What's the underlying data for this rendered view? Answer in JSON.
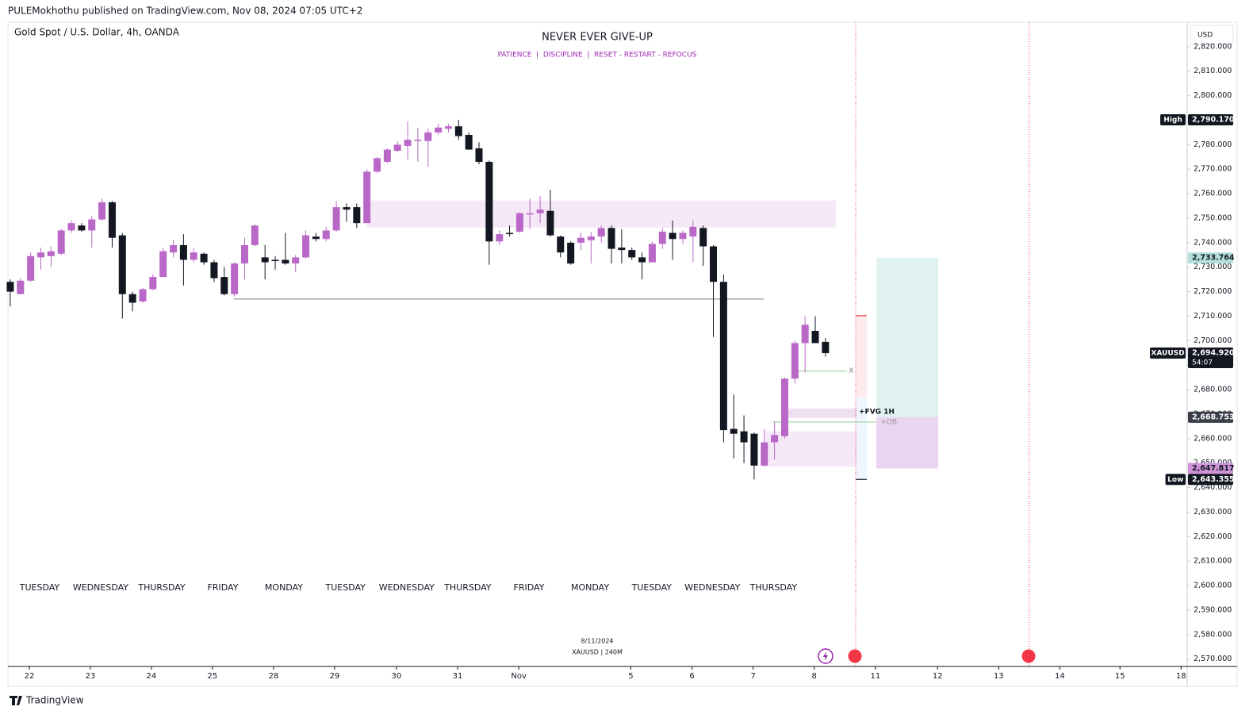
{
  "header": "PULEMokhothu published on TradingView.com, Nov 08, 2024 07:05 UTC+2",
  "footer": "TradingView",
  "chart_data": {
    "type": "candlestick",
    "symbol": "Gold Spot / U.S. Dollar, 4h, OANDA",
    "title": "NEVER EVER GIVE-UP",
    "subtitle": "PATIENCE  |  DISCIPLINE  |  RESET - RESTART - REFOCUS",
    "currency": "USD",
    "watermark": [
      "8/11/2024",
      "XAUUSD | 240M"
    ],
    "up_color": "#ba68c8",
    "down_color": "#131722",
    "open": [
      2724,
      2719,
      2724.5,
      2734,
      2734.5,
      2735.5,
      2745,
      2747,
      2745,
      2749.5,
      2756.5,
      2743,
      2719,
      2716,
      2721,
      2726,
      2736,
      2739,
      2733,
      2735.5,
      2732,
      2726,
      2719,
      2731.5,
      2739,
      2734,
      2733,
      2733,
      2731.5,
      2734,
      2742.5,
      2741.5,
      2745,
      2754.5,
      2754.5,
      2748,
      2769,
      2773,
      2777.5,
      2779.5,
      2781.5,
      2781.5,
      2785,
      2786.5,
      2787.5,
      2784,
      2778.5,
      2773,
      2740.5,
      2744,
      2744.5,
      2751.5,
      2752,
      2753,
      2742.5,
      2740,
      2740,
      2741,
      2742.5,
      2746,
      2738,
      2737,
      2734,
      2732,
      2739.5,
      2744,
      2741.5,
      2742.5,
      2746,
      2738.5,
      2724,
      2664,
      2663,
      2662,
      2649,
      2658.5,
      2661,
      2684.5,
      2699,
      2704,
      2699.5
    ],
    "high": [
      2725,
      2725.5,
      2736,
      2738,
      2738.5,
      2745.5,
      2749,
      2748,
      2751,
      2758,
      2757,
      2744,
      2720,
      2721.5,
      2727,
      2738,
      2741,
      2743.5,
      2738,
      2736,
      2733,
      2730,
      2732,
      2742,
      2747.5,
      2739,
      2734.5,
      2744,
      2735,
      2745,
      2744,
      2746.5,
      2757,
      2756,
      2756,
      2770,
      2775,
      2778.5,
      2781.5,
      2789.5,
      2787,
      2786.5,
      2788.5,
      2788.5,
      2790.17,
      2785,
      2781,
      2773.5,
      2745,
      2747,
      2752.5,
      2758,
      2759,
      2761.5,
      2743,
      2740.5,
      2744,
      2744.5,
      2747,
      2747,
      2745.5,
      2738,
      2736,
      2740.5,
      2746,
      2749,
      2745,
      2749,
      2747,
      2739,
      2727,
      2678,
      2669.5,
      2662.5,
      2664,
      2667,
      2685,
      2700,
      2710,
      2710,
      2701
    ],
    "low": [
      2714,
      2719,
      2724,
      2729,
      2730,
      2735,
      2744,
      2744.5,
      2738,
      2749,
      2738,
      2709,
      2712,
      2715.5,
      2720.5,
      2726,
      2734,
      2722.5,
      2732,
      2731,
      2724,
      2718.5,
      2718,
      2725,
      2738.5,
      2725,
      2729,
      2731,
      2728,
      2733.5,
      2740.5,
      2740.5,
      2744.5,
      2748.5,
      2746,
      2748,
      2768.5,
      2772.5,
      2777,
      2774,
      2773,
      2771,
      2784,
      2785,
      2782,
      2778,
      2772,
      2731,
      2739,
      2742.5,
      2744,
      2745.5,
      2748,
      2742.5,
      2734,
      2731,
      2737,
      2731.5,
      2740,
      2731.5,
      2731.5,
      2733,
      2725,
      2732,
      2737.5,
      2733,
      2739.5,
      2732,
      2730.5,
      2701.5,
      2658.5,
      2652,
      2650,
      2643.355,
      2648.5,
      2651.5,
      2660,
      2682.5,
      2687,
      2699,
      2693.5
    ],
    "close": [
      2720,
      2724.5,
      2734.5,
      2736,
      2736.5,
      2745,
      2748,
      2745,
      2749.5,
      2756.5,
      2742,
      2719,
      2715.5,
      2721,
      2726,
      2736.5,
      2739,
      2733,
      2736,
      2732,
      2725.5,
      2719,
      2731.5,
      2739,
      2747,
      2732,
      2732.5,
      2731.5,
      2734,
      2743,
      2741.5,
      2745,
      2754.5,
      2753.5,
      2748,
      2769,
      2774.5,
      2778,
      2780,
      2782,
      2782,
      2785,
      2787,
      2787.5,
      2783.5,
      2778,
      2773,
      2740.5,
      2743.5,
      2743.5,
      2752,
      2752,
      2753.5,
      2743,
      2736,
      2731.5,
      2742,
      2742.5,
      2746,
      2737.5,
      2737,
      2734,
      2732,
      2739.5,
      2744.5,
      2741.5,
      2744,
      2746.5,
      2738.5,
      2724,
      2663.5,
      2662,
      2658.5,
      2649,
      2658.5,
      2661.5,
      2684.5,
      2699,
      2706.5,
      2699,
      2694.92
    ],
    "xlim": [
      -0.23,
      115.5
    ],
    "ylim": [
      2567,
      2830
    ],
    "xticks": [
      {
        "value": 1.87,
        "label": "22"
      },
      {
        "value": 7.86,
        "label": "23"
      },
      {
        "value": 13.85,
        "label": "24"
      },
      {
        "value": 19.84,
        "label": "25"
      },
      {
        "value": 25.84,
        "label": "28"
      },
      {
        "value": 31.83,
        "label": "29"
      },
      {
        "value": 37.9,
        "label": "30"
      },
      {
        "value": 43.9,
        "label": "31"
      },
      {
        "value": 49.9,
        "label": "Nov"
      },
      {
        "value": 60.9,
        "label": "5"
      },
      {
        "value": 66.9,
        "label": "6"
      },
      {
        "value": 72.9,
        "label": "7"
      },
      {
        "value": 78.9,
        "label": "8"
      },
      {
        "value": 84.9,
        "label": "11"
      },
      {
        "value": 91.0,
        "label": "12"
      },
      {
        "value": 97.0,
        "label": "13"
      },
      {
        "value": 103.0,
        "label": "14"
      },
      {
        "value": 108.9,
        "label": "15"
      },
      {
        "value": 114.9,
        "label": "18"
      }
    ],
    "yticks": [
      {
        "value": 2570,
        "label": "2,570.000"
      },
      {
        "value": 2580,
        "label": "2,580.000"
      },
      {
        "value": 2590,
        "label": "2,590.000"
      },
      {
        "value": 2600,
        "label": "2,600.000"
      },
      {
        "value": 2610,
        "label": "2,610.000"
      },
      {
        "value": 2620,
        "label": "2,620.000"
      },
      {
        "value": 2630,
        "label": "2,630.000"
      },
      {
        "value": 2640,
        "label": "2,640.000"
      },
      {
        "value": 2650,
        "label": "2,650.000"
      },
      {
        "value": 2660,
        "label": "2,660.000"
      },
      {
        "value": 2670,
        "label": "2,670.000"
      },
      {
        "value": 2680,
        "label": "2,680.000"
      },
      {
        "value": 2690,
        "label": "2,690.000"
      },
      {
        "value": 2700,
        "label": "2,700.000"
      },
      {
        "value": 2710,
        "label": "2,710.000"
      },
      {
        "value": 2720,
        "label": "2,720.000"
      },
      {
        "value": 2730,
        "label": "2,730.000"
      },
      {
        "value": 2740,
        "label": "2,740.000"
      },
      {
        "value": 2750,
        "label": "2,750.000"
      },
      {
        "value": 2760,
        "label": "2,760.000"
      },
      {
        "value": 2770,
        "label": "2,770.000"
      },
      {
        "value": 2780,
        "label": "2,780.000"
      },
      {
        "value": 2790,
        "label": "2,790.000"
      },
      {
        "value": 2800,
        "label": "2,800.000"
      },
      {
        "value": 2810,
        "label": "2,810.000"
      },
      {
        "value": 2820,
        "label": "2,820.000"
      }
    ],
    "day_labels": [
      {
        "label": "TUESDAY",
        "x": 2.88
      },
      {
        "label": "WEDNESDAY",
        "x": 8.87
      },
      {
        "label": "THURSDAY",
        "x": 14.87
      },
      {
        "label": "FRIDAY",
        "x": 20.86
      },
      {
        "label": "MONDAY",
        "x": 26.85
      },
      {
        "label": "TUESDAY",
        "x": 32.9
      },
      {
        "label": "WEDNESDAY",
        "x": 38.9
      },
      {
        "label": "THURSDAY",
        "x": 44.9
      },
      {
        "label": "FRIDAY",
        "x": 50.9
      },
      {
        "label": "MONDAY",
        "x": 56.9
      },
      {
        "label": "TUESDAY",
        "x": 62.95
      },
      {
        "label": "WEDNESDAY",
        "x": 68.9
      },
      {
        "label": "THURSDAY",
        "x": 74.9
      }
    ],
    "zones": [
      {
        "x": [
          34.95,
          81.02
        ],
        "y": [
          2746.2,
          2757.2
        ],
        "color": "rgba(186,104,200,0.15)"
      },
      {
        "x": [
          74.1,
          83.05
        ],
        "y": [
          2648.7,
          2663
        ],
        "color": "rgba(186,104,200,0.15)"
      },
      {
        "x": [
          76.04,
          83.05
        ],
        "y": [
          2668.5,
          2672.3
        ],
        "color": "rgba(186,104,200,0.22)"
      },
      {
        "x": [
          83,
          84.06
        ],
        "y": [
          2676.6,
          2710.2
        ],
        "color": "rgba(242,54,69,0.1)"
      },
      {
        "x": [
          83,
          84.06
        ],
        "y": [
          2643.355,
          2676.6
        ],
        "color": "rgba(33,150,243,0.08)"
      },
      {
        "x": [
          85,
          91.06
        ],
        "y": [
          2668.753,
          2733.764
        ],
        "color": "rgba(38,166,154,0.15)"
      },
      {
        "x": [
          85,
          91.06
        ],
        "y": [
          2647.817,
          2668.753
        ],
        "color": "rgba(156,39,176,0.2)"
      }
    ],
    "lines": [
      {
        "x": [
          21.95,
          73.94
        ],
        "y": 2717,
        "color": "#9598a1"
      },
      {
        "x": [
          74.87,
          84.99
        ],
        "y": 2666.8,
        "color": "#a5d6a7"
      },
      {
        "x": [
          76.9,
          82.1
        ],
        "y": 2687.6,
        "color": "#a5d6a7"
      },
      {
        "x": [
          83,
          84.06
        ],
        "y": 2710.2,
        "color": "#f23645"
      },
      {
        "x": [
          83,
          84.06
        ],
        "y": 2643.355,
        "color": "#131722"
      }
    ],
    "annotations": [
      {
        "text": "+FVG 1H",
        "x": 83.28,
        "y": 2671,
        "color": "#131722"
      },
      {
        "text": "+OB",
        "x": 85.4,
        "y": 2666.8,
        "color": "#9598a1"
      },
      {
        "text": "X",
        "x": 82.3,
        "y": 2687.6,
        "color": "#787b86"
      }
    ],
    "vlines": {
      "x": [
        82.97,
        100.0
      ],
      "color": "#f23645"
    },
    "price_labels": [
      {
        "tag": "High",
        "value": 2790.17,
        "label": "2,790.170",
        "color": "#131722",
        "text_color": "#ffffff"
      },
      {
        "value": 2733.764,
        "label": "2,733.764",
        "color": "#b2dfdb",
        "text_color": "#131722"
      },
      {
        "tag": "XAUUSD",
        "value": 2694.92,
        "label": "2,694.920",
        "extra": "54:07",
        "color": "#131722",
        "text_color": "#ffffff"
      },
      {
        "value": 2668.753,
        "label": "2,668.753",
        "color": "#3a3e48",
        "text_color": "#ffffff"
      },
      {
        "value": 2647.817,
        "label": "2,647.817",
        "color": "#ce93d8",
        "text_color": "#131722"
      },
      {
        "tag": "Low",
        "value": 2643.355,
        "label": "2,643.355",
        "color": "#131722",
        "text_color": "#ffffff"
      }
    ]
  }
}
